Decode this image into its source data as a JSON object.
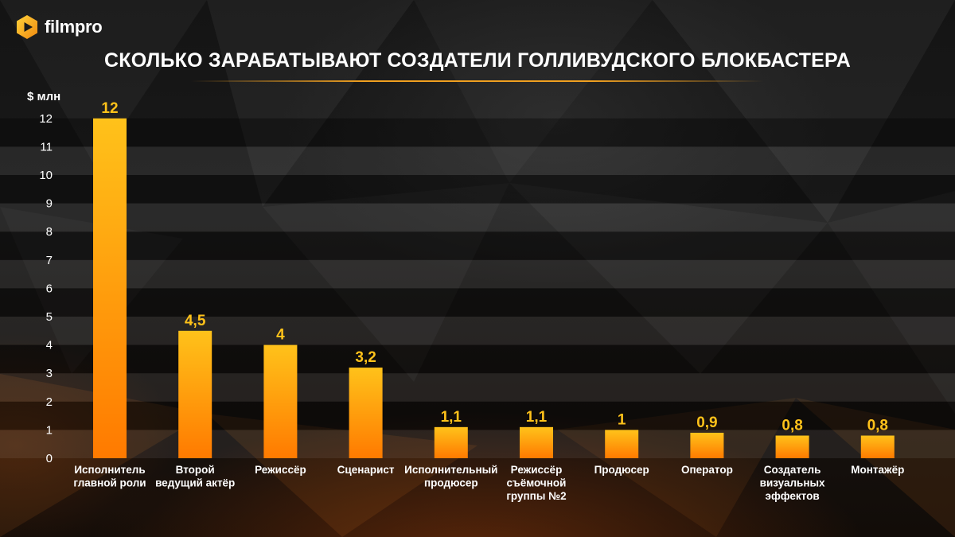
{
  "brand": {
    "name": "filmpro"
  },
  "colors": {
    "bar_top": "#ffc21a",
    "bar_bottom": "#ff7a00",
    "value_label": "#ffc21a",
    "accent": "#f0a020"
  },
  "chart_data": {
    "type": "bar",
    "title": "СКОЛЬКО ЗАРАБАТЫВАЮТ СОЗДАТЕЛИ ГОЛЛИВУДСКОГО БЛОКБАСТЕРА",
    "ylabel": "$ млн",
    "xlabel": "",
    "ylim": [
      0,
      12
    ],
    "yticks": [
      0,
      1,
      2,
      3,
      4,
      5,
      6,
      7,
      8,
      9,
      10,
      11,
      12
    ],
    "grid": "horizontal bands",
    "categories": [
      "Исполнитель главной роли",
      "Второй ведущий актёр",
      "Режиссёр",
      "Сценарист",
      "Исполнительный продюсер",
      "Режиссёр съёмочной группы №2",
      "Продюсер",
      "Оператор",
      "Создатель визуальных эффектов",
      "Монтажёр"
    ],
    "category_lines": [
      [
        "Исполнитель",
        "главной роли"
      ],
      [
        "Второй",
        "ведущий актёр"
      ],
      [
        "Режиссёр"
      ],
      [
        "Сценарист"
      ],
      [
        "Исполнительный",
        "продюсер"
      ],
      [
        "Режиссёр",
        "съёмочной",
        "группы №2"
      ],
      [
        "Продюсер"
      ],
      [
        "Оператор"
      ],
      [
        "Создатель",
        "визуальных",
        "эффектов"
      ],
      [
        "Монтажёр"
      ]
    ],
    "values": [
      12,
      4.5,
      4,
      3.2,
      1.1,
      1.1,
      1,
      0.9,
      0.8,
      0.8
    ],
    "value_labels": [
      "12",
      "4,5",
      "4",
      "3,2",
      "1,1",
      "1,1",
      "1",
      "0,9",
      "0,8",
      "0,8"
    ]
  }
}
